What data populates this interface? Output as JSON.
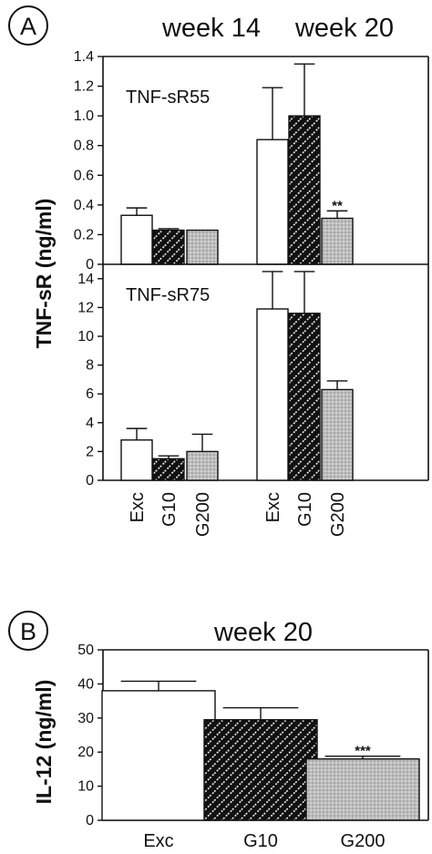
{
  "panel_a": {
    "label": "A",
    "week14_label": "week 14",
    "week20_label": "week 20",
    "ylabel": "TNF-sR (ng/ml)"
  },
  "panel_b": {
    "label": "B",
    "title": "week 20",
    "ylabel": "IL-12 (ng/ml)"
  },
  "colors": {
    "exc": "#ffffff",
    "g10": "#111111",
    "g200": "#c4c4c4",
    "axis": "#111111"
  },
  "chart_data": [
    {
      "type": "bar",
      "panel": "A",
      "title": "TNF-sR55",
      "ylabel": "TNF-sR (ng/ml)",
      "groups": [
        "week 14",
        "week 20"
      ],
      "categories": [
        "Exc",
        "G10",
        "G200"
      ],
      "ylim": [
        0,
        1.4
      ],
      "yticks": [
        0,
        0.2,
        0.4,
        0.6,
        0.8,
        1.0,
        1.2,
        1.4
      ],
      "ytick_labels": [
        "0",
        "0.2",
        "0.4",
        "0.6",
        "0.8",
        "1.0",
        "1.2",
        "1.4"
      ],
      "series": [
        {
          "group": "week 14",
          "values": [
            0.33,
            0.23,
            0.23
          ],
          "errors": [
            0.05,
            0.01,
            0.0
          ],
          "annotations": [
            "",
            "",
            ""
          ]
        },
        {
          "group": "week 20",
          "values": [
            0.84,
            1.0,
            0.31
          ],
          "errors": [
            0.35,
            0.35,
            0.05
          ],
          "annotations": [
            "",
            "",
            "**"
          ]
        }
      ]
    },
    {
      "type": "bar",
      "panel": "A",
      "title": "TNF-sR75",
      "ylabel": "TNF-sR (ng/ml)",
      "groups": [
        "week 14",
        "week 20"
      ],
      "categories": [
        "Exc",
        "G10",
        "G200"
      ],
      "ylim": [
        0,
        15
      ],
      "yticks": [
        0,
        2,
        4,
        6,
        8,
        10,
        12,
        14
      ],
      "ytick_labels": [
        "0",
        "2",
        "4",
        "6",
        "8",
        "10",
        "12",
        "14"
      ],
      "series": [
        {
          "group": "week 14",
          "values": [
            2.8,
            1.5,
            2.0
          ],
          "errors": [
            0.8,
            0.2,
            1.2
          ],
          "annotations": [
            "",
            "",
            ""
          ]
        },
        {
          "group": "week 20",
          "values": [
            11.9,
            11.6,
            6.3
          ],
          "errors": [
            2.6,
            2.9,
            0.6
          ],
          "annotations": [
            "",
            "",
            ""
          ]
        }
      ]
    },
    {
      "type": "bar",
      "panel": "B",
      "title": "week 20",
      "ylabel": "IL-12 (ng/ml)",
      "categories": [
        "Exc",
        "G10",
        "G200"
      ],
      "ylim": [
        0,
        50
      ],
      "yticks": [
        0,
        10,
        20,
        30,
        40,
        50
      ],
      "ytick_labels": [
        "0",
        "10",
        "20",
        "30",
        "40",
        "50"
      ],
      "values": [
        38,
        29.5,
        18
      ],
      "errors": [
        2.8,
        3.5,
        0.8
      ],
      "annotations": [
        "",
        "",
        "***"
      ]
    }
  ]
}
